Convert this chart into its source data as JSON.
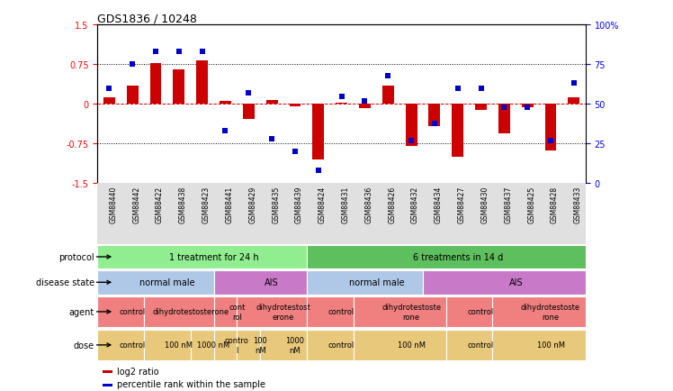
{
  "title": "GDS1836 / 10248",
  "samples": [
    "GSM88440",
    "GSM88442",
    "GSM88422",
    "GSM88438",
    "GSM88423",
    "GSM88441",
    "GSM88429",
    "GSM88435",
    "GSM88439",
    "GSM88424",
    "GSM88431",
    "GSM88436",
    "GSM88426",
    "GSM88432",
    "GSM88434",
    "GSM88427",
    "GSM88430",
    "GSM88437",
    "GSM88425",
    "GSM88428",
    "GSM88433"
  ],
  "log2_ratio": [
    0.12,
    0.35,
    0.78,
    0.65,
    0.82,
    0.06,
    -0.28,
    0.08,
    -0.04,
    -1.05,
    0.02,
    -0.08,
    0.35,
    -0.8,
    -0.42,
    -1.0,
    -0.12,
    -0.55,
    -0.07,
    -0.88,
    0.12
  ],
  "percentile": [
    0.6,
    0.75,
    0.83,
    0.83,
    0.83,
    0.33,
    0.57,
    0.28,
    0.2,
    0.08,
    0.55,
    0.52,
    0.68,
    0.27,
    0.38,
    0.6,
    0.6,
    0.48,
    0.48,
    0.27,
    0.63
  ],
  "ylim_left": [
    -1.5,
    1.5
  ],
  "ylim_right": [
    0,
    100
  ],
  "yticks_left": [
    -1.5,
    -0.75,
    0,
    0.75,
    1.5
  ],
  "yticks_right": [
    0,
    25,
    50,
    75,
    100
  ],
  "hlines_dotted": [
    0.75,
    -0.75
  ],
  "hline_zero": 0,
  "bar_color": "#cc0000",
  "dot_color": "#0000cc",
  "protocol_groups": [
    {
      "label": "1 treatment for 24 h",
      "start": 0,
      "end": 9,
      "color": "#90ee90"
    },
    {
      "label": "6 treatments in 14 d",
      "start": 9,
      "end": 21,
      "color": "#5dbf5d"
    }
  ],
  "disease_groups": [
    {
      "label": "normal male",
      "start": 0,
      "end": 5,
      "color": "#b0c8e8"
    },
    {
      "label": "AIS",
      "start": 5,
      "end": 9,
      "color": "#c87ac8"
    },
    {
      "label": "normal male",
      "start": 9,
      "end": 14,
      "color": "#b0c8e8"
    },
    {
      "label": "AIS",
      "start": 14,
      "end": 21,
      "color": "#c87ac8"
    }
  ],
  "agent_groups": [
    {
      "label": "control",
      "start": 0,
      "end": 2,
      "color": "#f08080"
    },
    {
      "label": "dihydrotestosterone",
      "start": 2,
      "end": 5,
      "color": "#f08080"
    },
    {
      "label": "cont\nrol",
      "start": 5,
      "end": 6,
      "color": "#f08080"
    },
    {
      "label": "dihydrotestost\nerone",
      "start": 6,
      "end": 9,
      "color": "#f08080"
    },
    {
      "label": "control",
      "start": 9,
      "end": 11,
      "color": "#f08080"
    },
    {
      "label": "dihydrotestoste\nrone",
      "start": 11,
      "end": 15,
      "color": "#f08080"
    },
    {
      "label": "control",
      "start": 15,
      "end": 17,
      "color": "#f08080"
    },
    {
      "label": "dihydrotestoste\nrone",
      "start": 17,
      "end": 21,
      "color": "#f08080"
    }
  ],
  "dose_groups": [
    {
      "label": "control",
      "start": 0,
      "end": 2,
      "color": "#e8c87a"
    },
    {
      "label": "100 nM",
      "start": 2,
      "end": 4,
      "color": "#e8c87a"
    },
    {
      "label": "1000 nM",
      "start": 4,
      "end": 5,
      "color": "#e8c87a"
    },
    {
      "label": "contro\nl",
      "start": 5,
      "end": 6,
      "color": "#e8c87a"
    },
    {
      "label": "100\nnM",
      "start": 6,
      "end": 7,
      "color": "#e8c87a"
    },
    {
      "label": "1000\nnM",
      "start": 7,
      "end": 9,
      "color": "#e8c87a"
    },
    {
      "label": "control",
      "start": 9,
      "end": 11,
      "color": "#e8c87a"
    },
    {
      "label": "100 nM",
      "start": 11,
      "end": 15,
      "color": "#e8c87a"
    },
    {
      "label": "control",
      "start": 15,
      "end": 17,
      "color": "#e8c87a"
    },
    {
      "label": "100 nM",
      "start": 17,
      "end": 21,
      "color": "#e8c87a"
    }
  ]
}
